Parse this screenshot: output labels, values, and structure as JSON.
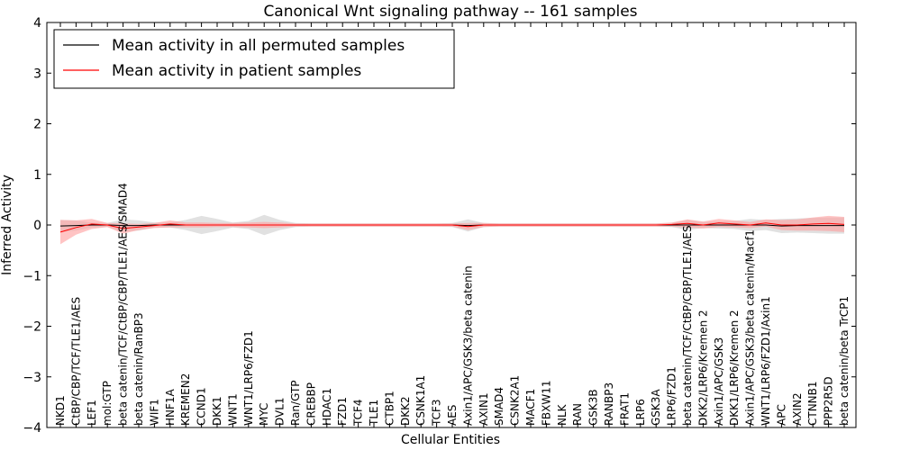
{
  "chart_data": {
    "type": "line",
    "title": "Canonical Wnt signaling pathway -- 161 samples",
    "xlabel": "Cellular Entities",
    "ylabel": "Inferred Activity",
    "ylim": [
      -4,
      4
    ],
    "yticks": [
      4,
      3,
      2,
      1,
      0,
      -1,
      -2,
      -3,
      -4
    ],
    "legend_position": "top-left",
    "categories": [
      "NKD1",
      "CtBP/CBP/TCF/TLE1/AES",
      "LEF1",
      "mol:GTP",
      "beta catenin/TCF/CtBP/CBP/TLE1/AES/SMAD4",
      "beta catenin/RanBP3",
      "WIF1",
      "HNF1A",
      "KREMEN2",
      "CCND1",
      "DKK1",
      "WNT1",
      "WNT1/LRP6/FZD1",
      "MYC",
      "DVL1",
      "Ran/GTP",
      "CREBBP",
      "HDAC1",
      "FZD1",
      "TCF4",
      "TLE1",
      "CTBP1",
      "DKK2",
      "CSNK1A1",
      "TCF3",
      "AES",
      "Axin1/APC/GSK3/beta catenin",
      "AXIN1",
      "SMAD4",
      "CSNK2A1",
      "MACF1",
      "FBXW11",
      "NLK",
      "RAN",
      "GSK3B",
      "RANBP3",
      "FRAT1",
      "LRP6",
      "GSK3A",
      "LRP6/FZD1",
      "beta catenin/TCF/CtBP/CBP/TLE1/AES",
      "DKK2/LRP6/Kremen 2",
      "Axin1/APC/GSK3",
      "DKK1/LRP6/Kremen 2",
      "Axin1/APC/GSK3/beta catenin/Macf1",
      "WNT1/LRP6/FZD1/Axin1",
      "APC",
      "AXIN2",
      "CTNNB1",
      "PPP2R5D",
      "beta catenin/beta TrCP1"
    ],
    "series": [
      {
        "name": "Mean activity in all permuted samples",
        "color": "#000000",
        "band_color": "#c8c8c8",
        "values": [
          -0.02,
          -0.01,
          0.0,
          0.0,
          -0.01,
          -0.01,
          0.0,
          0.0,
          0.0,
          0.0,
          0.0,
          0.0,
          0.0,
          0.0,
          0.0,
          0.0,
          0.0,
          0.0,
          0.0,
          0.0,
          0.0,
          0.0,
          0.0,
          0.0,
          0.0,
          0.0,
          -0.01,
          0.0,
          0.0,
          0.0,
          0.0,
          0.0,
          0.0,
          0.0,
          0.0,
          0.0,
          0.0,
          0.0,
          0.0,
          0.0,
          0.0,
          0.0,
          0.0,
          0.0,
          0.0,
          0.0,
          -0.02,
          -0.01,
          -0.01,
          -0.01,
          -0.01
        ],
        "band": [
          0.12,
          0.1,
          0.05,
          0.04,
          0.12,
          0.1,
          0.05,
          0.05,
          0.1,
          0.18,
          0.12,
          0.05,
          0.08,
          0.2,
          0.1,
          0.04,
          0.03,
          0.03,
          0.03,
          0.03,
          0.03,
          0.03,
          0.03,
          0.03,
          0.03,
          0.04,
          0.12,
          0.04,
          0.03,
          0.03,
          0.03,
          0.03,
          0.03,
          0.03,
          0.03,
          0.03,
          0.03,
          0.03,
          0.03,
          0.04,
          0.1,
          0.06,
          0.07,
          0.08,
          0.12,
          0.1,
          0.14,
          0.14,
          0.15,
          0.16,
          0.16
        ]
      },
      {
        "name": "Mean activity in patient samples",
        "color": "#ff0000",
        "band_color": "#ff9c9c",
        "values": [
          -0.14,
          -0.05,
          0.02,
          0.0,
          -0.07,
          -0.04,
          -0.01,
          0.02,
          0.0,
          0.0,
          0.0,
          0.0,
          0.0,
          0.0,
          0.0,
          0.0,
          0.0,
          0.0,
          0.0,
          0.0,
          0.0,
          0.0,
          0.0,
          0.0,
          0.0,
          0.0,
          -0.03,
          0.0,
          0.0,
          0.0,
          0.0,
          0.0,
          0.0,
          0.0,
          0.0,
          0.0,
          0.0,
          0.0,
          0.0,
          0.01,
          0.03,
          0.0,
          0.04,
          0.02,
          0.0,
          0.04,
          0.0,
          0.0,
          0.02,
          0.03,
          0.01
        ],
        "band": [
          0.24,
          0.14,
          0.1,
          0.04,
          0.1,
          0.06,
          0.05,
          0.07,
          0.05,
          0.05,
          0.04,
          0.04,
          0.05,
          0.06,
          0.05,
          0.03,
          0.03,
          0.03,
          0.03,
          0.03,
          0.03,
          0.03,
          0.03,
          0.03,
          0.03,
          0.03,
          0.07,
          0.04,
          0.03,
          0.03,
          0.03,
          0.03,
          0.03,
          0.03,
          0.03,
          0.03,
          0.03,
          0.03,
          0.03,
          0.04,
          0.08,
          0.07,
          0.08,
          0.07,
          0.06,
          0.07,
          0.1,
          0.11,
          0.13,
          0.15,
          0.15
        ]
      }
    ]
  }
}
